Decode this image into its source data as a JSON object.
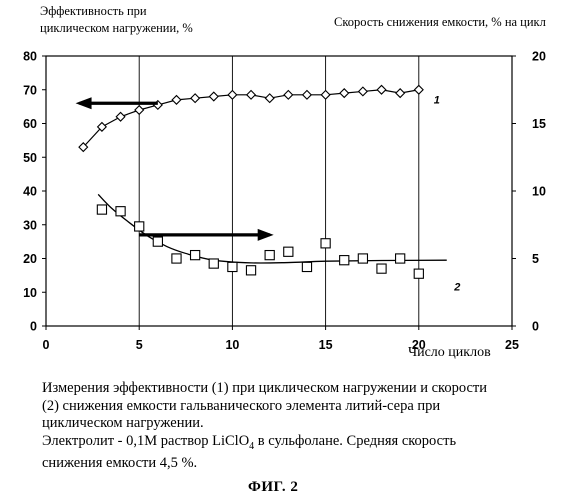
{
  "chart_data": {
    "type": "scatter",
    "ylabel_left_lines": [
      "Эффективность  при",
      "циклическом нагружении, %"
    ],
    "ylabel_right": "Скорость снижения емкости, % на цикл",
    "xlabel": "Число циклов",
    "xlim": [
      0,
      25
    ],
    "xticks": [
      "0",
      "5",
      "10",
      "15",
      "20",
      "25"
    ],
    "ylim_left": [
      0,
      80
    ],
    "yticks_left": [
      "0",
      "10",
      "20",
      "30",
      "40",
      "50",
      "60",
      "70",
      "80"
    ],
    "ylim_right": [
      0,
      20
    ],
    "yticks_right": [
      "0",
      "5",
      "10",
      "15",
      "20"
    ],
    "grid": "vertical",
    "series": [
      {
        "name": "1",
        "axis": "left",
        "marker": "diamond",
        "connected": true,
        "x": [
          2,
          3,
          4,
          5,
          6,
          7,
          8,
          9,
          10,
          11,
          12,
          13,
          14,
          15,
          16,
          17,
          18,
          19,
          20
        ],
        "y": [
          53,
          59,
          62,
          64,
          65.5,
          67,
          67.5,
          68,
          68.5,
          68.5,
          67.5,
          68.5,
          68.5,
          68.5,
          69,
          69.5,
          70,
          69,
          70
        ]
      },
      {
        "name": "2",
        "axis": "left",
        "marker": "square",
        "connected": false,
        "x": [
          3,
          4,
          5,
          6,
          7,
          8,
          9,
          10,
          11,
          12,
          13,
          14,
          15,
          16,
          17,
          18,
          19,
          20
        ],
        "y": [
          34.5,
          34,
          29.5,
          25,
          20,
          21,
          18.5,
          17.5,
          16.5,
          21,
          22,
          17.5,
          24.5,
          19.5,
          20,
          17,
          20,
          15.5
        ]
      }
    ],
    "trend_curve_2": {
      "x": [
        2.8,
        3.5,
        4.5,
        5.5,
        6.5,
        7.5,
        9,
        11,
        13,
        15,
        18,
        21.5
      ],
      "y": [
        39,
        35,
        30.5,
        26.5,
        23.5,
        21.5,
        19.5,
        18.7,
        18.8,
        19.2,
        19.4,
        19.5
      ]
    },
    "annotations": [
      {
        "text": "1",
        "x": 20.8,
        "y": 66,
        "kind": "series-label"
      },
      {
        "text": "2",
        "x": 21.9,
        "y": 10.5,
        "kind": "series-label"
      },
      {
        "kind": "arrow",
        "direction": "left",
        "from": [
          6,
          66
        ],
        "to": [
          1.8,
          66
        ]
      },
      {
        "kind": "arrow",
        "direction": "right",
        "from": [
          5,
          27
        ],
        "to": [
          12,
          27
        ]
      }
    ]
  },
  "caption": {
    "line1": "Измерения эффективности (1) при циклическом нагружении и скорости",
    "line2": "(2) снижения емкости гальванического элемента литий-сера при",
    "line3": "циклическом нагружении.",
    "line4_before": "Электролит - 0,1М раствор LiClO",
    "line4_sub": "4",
    "line4_after": " в сульфолане. Средняя скорость",
    "line5": "снижения емкости 4,5 %."
  },
  "fig_label": "ФИГ. 2"
}
